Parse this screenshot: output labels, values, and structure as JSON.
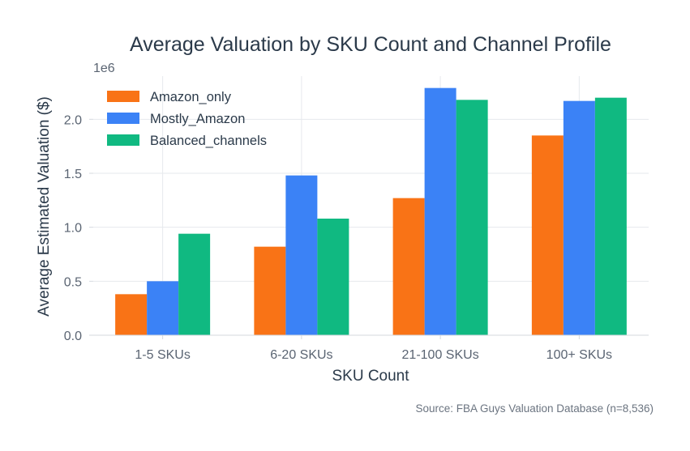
{
  "chart_data": {
    "type": "bar",
    "title": "Average Valuation by SKU Count and Channel Profile",
    "xlabel": "SKU Count",
    "ylabel": "Average Estimated Valuation ($)",
    "y_multiplier_label": "1e6",
    "categories": [
      "1-5 SKUs",
      "6-20 SKUs",
      "21-100 SKUs",
      "100+ SKUs"
    ],
    "series": [
      {
        "name": "Amazon_only",
        "color": "#f97316",
        "values": [
          380000,
          820000,
          1270000,
          1850000
        ]
      },
      {
        "name": "Mostly_Amazon",
        "color": "#3b82f6",
        "values": [
          500000,
          1480000,
          2290000,
          2170000
        ]
      },
      {
        "name": "Balanced_channels",
        "color": "#10b981",
        "values": [
          940000,
          1080000,
          2180000,
          2200000
        ]
      }
    ],
    "ylim": [
      0,
      2400000
    ],
    "yticks": [
      0,
      500000,
      1000000,
      1500000,
      2000000
    ],
    "ytick_labels": [
      "0.0",
      "0.5",
      "1.0",
      "1.5",
      "2.0"
    ],
    "grid": true,
    "legend_position": "top-left",
    "source": "Source: FBA Guys Valuation Database (n=8,536)"
  }
}
